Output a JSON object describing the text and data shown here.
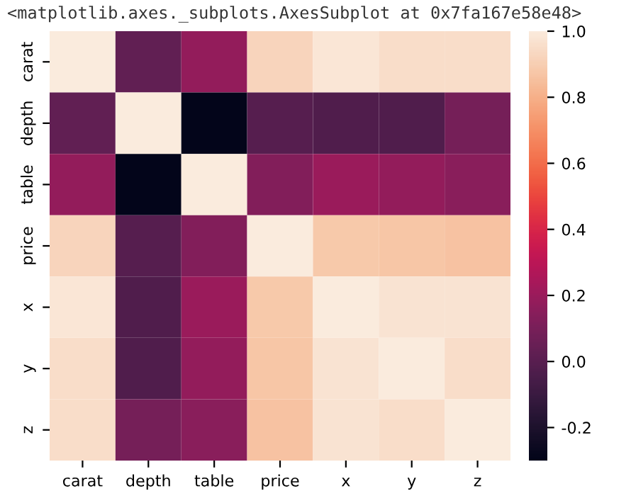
{
  "chart_data": {
    "type": "heatmap",
    "annotations": [
      "<matplotlib.axes._subplots.AxesSubplot at 0x7fa167e58e48>"
    ],
    "categories": [
      "carat",
      "depth",
      "table",
      "price",
      "x",
      "y",
      "z"
    ],
    "y_categories": [
      "carat",
      "depth",
      "table",
      "price",
      "x",
      "y",
      "z"
    ],
    "cells": [
      [
        1.0,
        0.03,
        0.18,
        0.92,
        0.98,
        0.95,
        0.95
      ],
      [
        0.03,
        1.0,
        -0.3,
        -0.01,
        -0.03,
        -0.03,
        0.09
      ],
      [
        0.18,
        -0.3,
        1.0,
        0.13,
        0.2,
        0.18,
        0.15
      ],
      [
        0.92,
        -0.01,
        0.13,
        1.0,
        0.88,
        0.87,
        0.86
      ],
      [
        0.98,
        -0.03,
        0.2,
        0.88,
        1.0,
        0.97,
        0.97
      ],
      [
        0.95,
        -0.03,
        0.18,
        0.87,
        0.97,
        1.0,
        0.95
      ],
      [
        0.95,
        0.09,
        0.15,
        0.86,
        0.97,
        0.95,
        1.0
      ]
    ],
    "clim": [
      -0.3,
      1.0
    ],
    "cticks": [
      -0.2,
      {
        "value": 0,
        "label": "0.0"
      },
      0.2,
      0.4,
      0.6,
      0.8,
      {
        "value": 1,
        "label": "1.0"
      }
    ]
  }
}
